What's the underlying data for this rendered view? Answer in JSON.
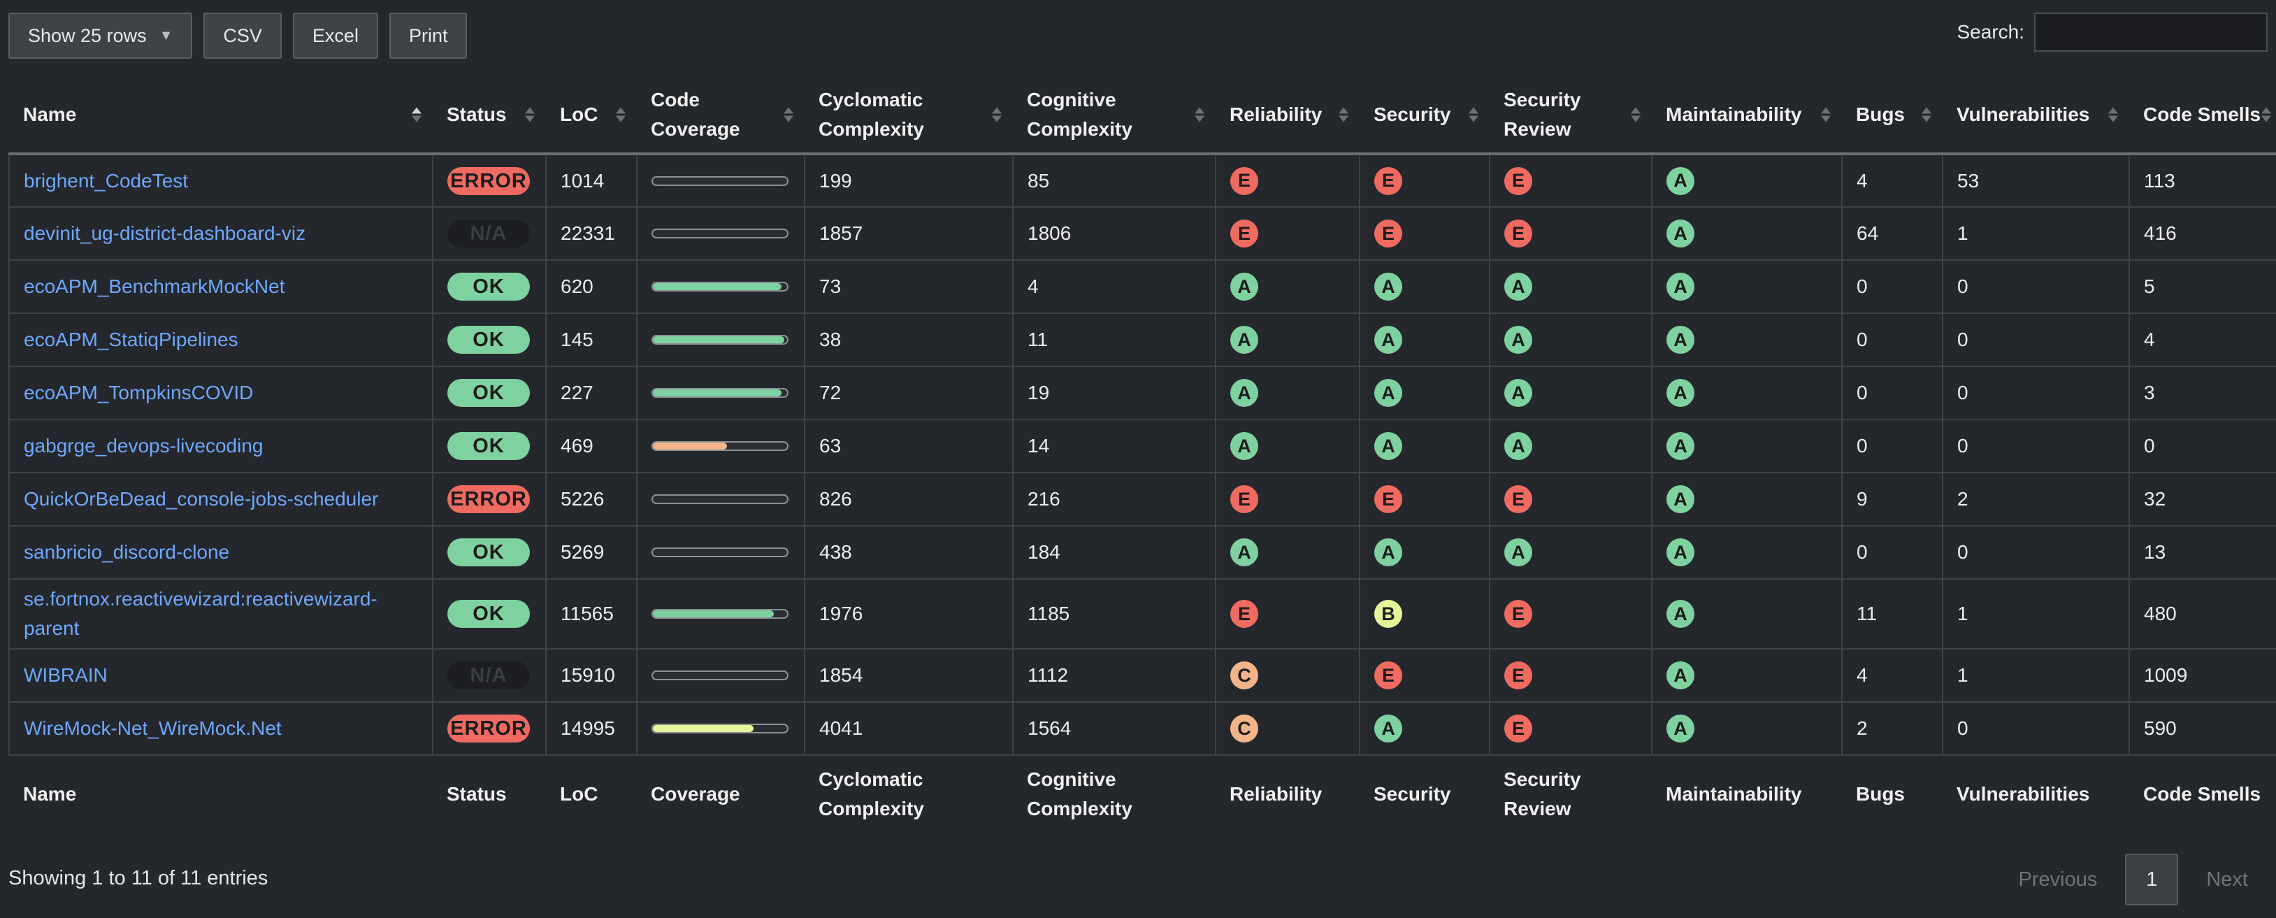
{
  "toolbar": {
    "show_rows": "Show 25 rows",
    "csv": "CSV",
    "excel": "Excel",
    "print": "Print"
  },
  "search": {
    "label": "Search:",
    "value": "",
    "placeholder": ""
  },
  "header": [
    "Name",
    "Status",
    "LoC",
    "Code Coverage",
    "Cyclomatic Complexity",
    "Cognitive Complexity",
    "Reliability",
    "Security",
    "Security Review",
    "Maintainability",
    "Bugs",
    "Vulnerabilities",
    "Code Smells"
  ],
  "footer": [
    "Name",
    "Status",
    "LoC",
    "Coverage",
    "Cyclomatic Complexity",
    "Cognitive Complexity",
    "Reliability",
    "Security",
    "Security Review",
    "Maintainability",
    "Bugs",
    "Vulnerabilities",
    "Code Smells"
  ],
  "colors": {
    "rating_A": "#7ed2a0",
    "rating_B": "#e7f59a",
    "rating_C": "#f2b488",
    "rating_E": "#ef6b62",
    "coverage_green": "#7ed2a0",
    "coverage_orange": "#f2b488",
    "coverage_yellow": "#e7f59a",
    "link": "#6fa8ff"
  },
  "rows": [
    {
      "name": "brighent_CodeTest",
      "status": "ERROR",
      "loc": "1014",
      "coverage": 0,
      "coverage_color": "coverage_green",
      "cyclomatic": "199",
      "cognitive": "85",
      "reliability": "E",
      "security": "E",
      "security_review": "E",
      "maintainability": "A",
      "bugs": "4",
      "vulnerabilities": "53",
      "code_smells": "113"
    },
    {
      "name": "devinit_ug-district-dashboard-viz",
      "status": "N/A",
      "loc": "22331",
      "coverage": 0,
      "coverage_color": "coverage_green",
      "cyclomatic": "1857",
      "cognitive": "1806",
      "reliability": "E",
      "security": "E",
      "security_review": "E",
      "maintainability": "A",
      "bugs": "64",
      "vulnerabilities": "1",
      "code_smells": "416"
    },
    {
      "name": "ecoAPM_BenchmarkMockNet",
      "status": "OK",
      "loc": "620",
      "coverage": 0.96,
      "coverage_color": "coverage_green",
      "cyclomatic": "73",
      "cognitive": "4",
      "reliability": "A",
      "security": "A",
      "security_review": "A",
      "maintainability": "A",
      "bugs": "0",
      "vulnerabilities": "0",
      "code_smells": "5"
    },
    {
      "name": "ecoAPM_StatiqPipelines",
      "status": "OK",
      "loc": "145",
      "coverage": 0.98,
      "coverage_color": "coverage_green",
      "cyclomatic": "38",
      "cognitive": "11",
      "reliability": "A",
      "security": "A",
      "security_review": "A",
      "maintainability": "A",
      "bugs": "0",
      "vulnerabilities": "0",
      "code_smells": "4"
    },
    {
      "name": "ecoAPM_TompkinsCOVID",
      "status": "OK",
      "loc": "227",
      "coverage": 0.96,
      "coverage_color": "coverage_green",
      "cyclomatic": "72",
      "cognitive": "19",
      "reliability": "A",
      "security": "A",
      "security_review": "A",
      "maintainability": "A",
      "bugs": "0",
      "vulnerabilities": "0",
      "code_smells": "3"
    },
    {
      "name": "gabgrge_devops-livecoding",
      "status": "OK",
      "loc": "469",
      "coverage": 0.55,
      "coverage_color": "coverage_orange",
      "cyclomatic": "63",
      "cognitive": "14",
      "reliability": "A",
      "security": "A",
      "security_review": "A",
      "maintainability": "A",
      "bugs": "0",
      "vulnerabilities": "0",
      "code_smells": "0"
    },
    {
      "name": "QuickOrBeDead_console-jobs-scheduler",
      "status": "ERROR",
      "loc": "5226",
      "coverage": 0,
      "coverage_color": "coverage_green",
      "cyclomatic": "826",
      "cognitive": "216",
      "reliability": "E",
      "security": "E",
      "security_review": "E",
      "maintainability": "A",
      "bugs": "9",
      "vulnerabilities": "2",
      "code_smells": "32"
    },
    {
      "name": "sanbricio_discord-clone",
      "status": "OK",
      "loc": "5269",
      "coverage": 0,
      "coverage_color": "coverage_green",
      "cyclomatic": "438",
      "cognitive": "184",
      "reliability": "A",
      "security": "A",
      "security_review": "A",
      "maintainability": "A",
      "bugs": "0",
      "vulnerabilities": "0",
      "code_smells": "13"
    },
    {
      "name": "se.fortnox.reactivewizard:reactivewizard-parent",
      "status": "OK",
      "loc": "11565",
      "coverage": 0.9,
      "coverage_color": "coverage_green",
      "cyclomatic": "1976",
      "cognitive": "1185",
      "reliability": "E",
      "security": "B",
      "security_review": "E",
      "maintainability": "A",
      "bugs": "11",
      "vulnerabilities": "1",
      "code_smells": "480"
    },
    {
      "name": "WIBRAIN",
      "status": "N/A",
      "loc": "15910",
      "coverage": 0,
      "coverage_color": "coverage_green",
      "cyclomatic": "1854",
      "cognitive": "1112",
      "reliability": "C",
      "security": "E",
      "security_review": "E",
      "maintainability": "A",
      "bugs": "4",
      "vulnerabilities": "1",
      "code_smells": "1009"
    },
    {
      "name": "WireMock-Net_WireMock.Net",
      "status": "ERROR",
      "loc": "14995",
      "coverage": 0.75,
      "coverage_color": "coverage_yellow",
      "cyclomatic": "4041",
      "cognitive": "1564",
      "reliability": "C",
      "security": "A",
      "security_review": "E",
      "maintainability": "A",
      "bugs": "2",
      "vulnerabilities": "0",
      "code_smells": "590"
    }
  ],
  "info": "Showing 1 to 11 of 11 entries",
  "pagination": {
    "previous": "Previous",
    "current": "1",
    "next": "Next"
  }
}
